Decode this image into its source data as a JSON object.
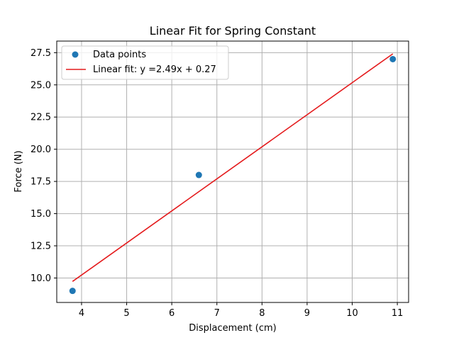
{
  "chart_data": {
    "type": "scatter",
    "title": "Linear Fit for Spring Constant",
    "xlabel": "Displacement (cm)",
    "ylabel": "Force (N)",
    "xlim": [
      3.45,
      11.25
    ],
    "ylim": [
      8.1,
      28.4
    ],
    "grid": true,
    "legend_position": "top-left",
    "x_ticks": [
      4,
      5,
      6,
      7,
      8,
      9,
      10,
      11
    ],
    "x_tick_labels": [
      "4",
      "5",
      "6",
      "7",
      "8",
      "9",
      "10",
      "11"
    ],
    "y_ticks": [
      10.0,
      12.5,
      15.0,
      17.5,
      20.0,
      22.5,
      25.0,
      27.5
    ],
    "y_tick_labels": [
      "10.0",
      "12.5",
      "15.0",
      "17.5",
      "20.0",
      "22.5",
      "25.0",
      "27.5"
    ],
    "series": [
      {
        "name": "Data points",
        "kind": "scatter",
        "color": "#1f77b4",
        "x": [
          3.8,
          6.6,
          10.9
        ],
        "y": [
          9.0,
          18.0,
          27.0
        ]
      },
      {
        "name": "Linear fit: y =2.49x + 0.27",
        "kind": "line",
        "color": "#e41a1c",
        "slope": 2.49,
        "intercept": 0.27,
        "x": [
          3.8,
          10.9
        ]
      }
    ]
  }
}
